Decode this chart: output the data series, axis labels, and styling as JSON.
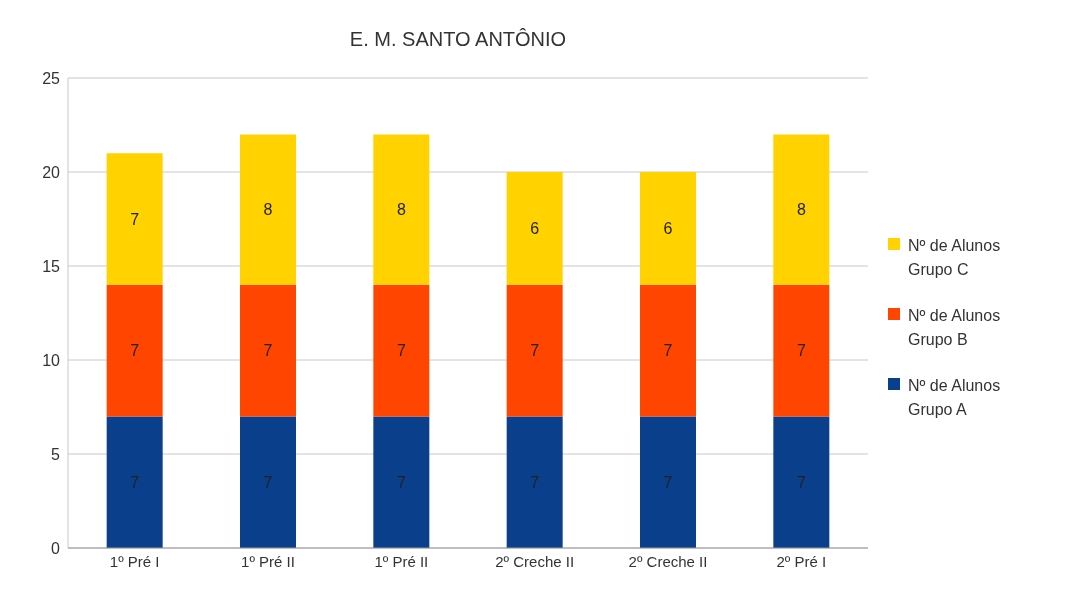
{
  "chart_data": {
    "type": "bar",
    "title": "E. M. SANTO ANTÔNIO",
    "categories": [
      "1º Pré I",
      "1º Pré II",
      "1º Pré II",
      "2º Creche II",
      "2º Creche II",
      "2º Pré I"
    ],
    "series": [
      {
        "name": "Nº de Alunos  Grupo A",
        "color": "#0a3f8c",
        "values": [
          7,
          7,
          7,
          7,
          7,
          7
        ]
      },
      {
        "name": "Nº de Alunos Grupo B",
        "color": "#ff4500",
        "values": [
          7,
          7,
          7,
          7,
          7,
          7
        ]
      },
      {
        "name": "Nº de Alunos Grupo C",
        "color": "#ffd200",
        "values": [
          7,
          8,
          8,
          6,
          6,
          8
        ]
      }
    ],
    "stacked": true,
    "data_labels": true,
    "ylim": [
      0,
      25
    ],
    "yticks": [
      0,
      5,
      10,
      15,
      20,
      25
    ],
    "grid": "y",
    "legend": "right"
  }
}
